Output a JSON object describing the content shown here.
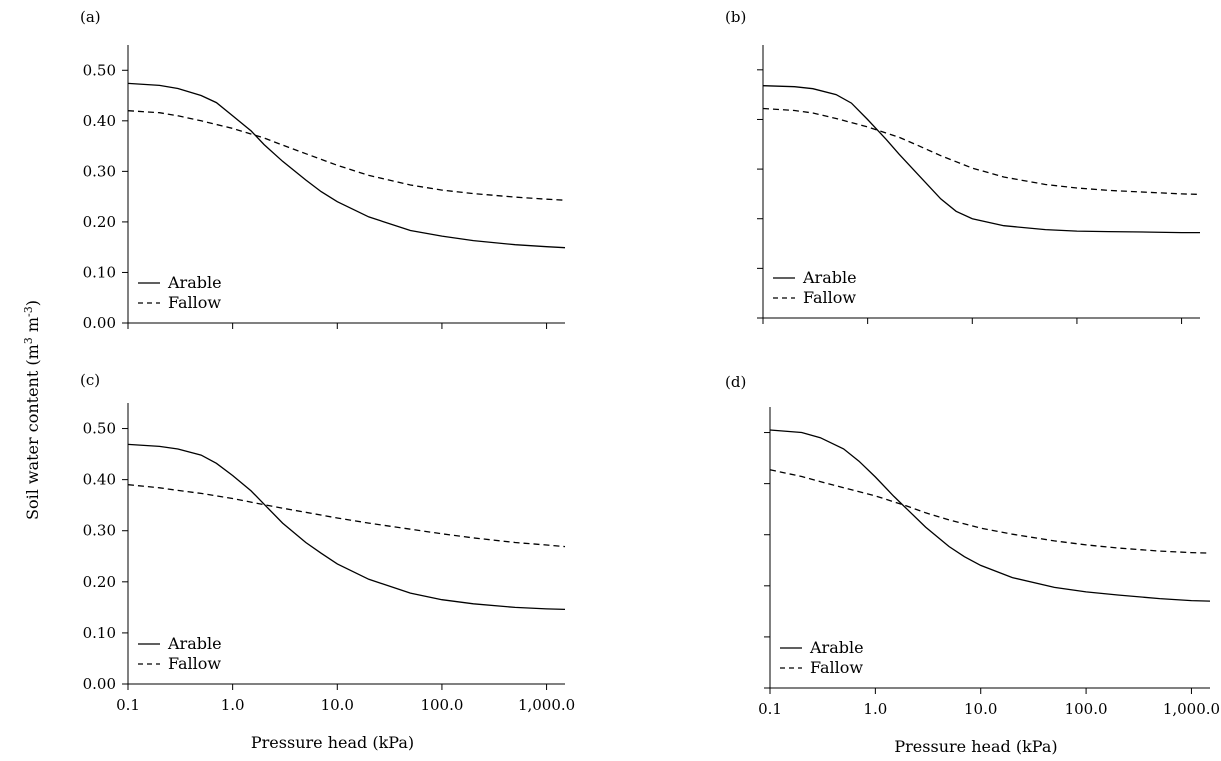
{
  "figure": {
    "ylabel_main": "Soil water content (m",
    "ylabel_sup1": "3",
    "ylabel_mid": " m",
    "ylabel_sup2": "-3",
    "ylabel_end": ")",
    "xlabel": "Pressure head (kPa)"
  },
  "chart_data": [
    {
      "panel": "(a)",
      "type": "line",
      "xscale": "log",
      "xlim": [
        0.1,
        1500
      ],
      "ylim": [
        0,
        0.55
      ],
      "yticks": [
        "0.00",
        "0.10",
        "0.20",
        "0.30",
        "0.40",
        "0.50"
      ],
      "xticks": [],
      "xlabel": "",
      "legend_position": "bottom-left",
      "series": [
        {
          "name": "Arable",
          "style": "solid",
          "x": [
            0.1,
            0.2,
            0.3,
            0.5,
            0.7,
            1.0,
            1.5,
            2.0,
            3.0,
            5.0,
            7.0,
            10.0,
            20.0,
            50.0,
            100.0,
            200.0,
            500.0,
            1000.0,
            1500.0
          ],
          "y": [
            0.474,
            0.47,
            0.464,
            0.45,
            0.436,
            0.41,
            0.38,
            0.353,
            0.32,
            0.283,
            0.26,
            0.24,
            0.21,
            0.183,
            0.172,
            0.163,
            0.155,
            0.151,
            0.149
          ]
        },
        {
          "name": "Fallow",
          "style": "dashed",
          "x": [
            0.1,
            0.2,
            0.3,
            0.5,
            1.0,
            2.0,
            3.0,
            5.0,
            10.0,
            20.0,
            50.0,
            100.0,
            200.0,
            500.0,
            1000.0,
            1500.0
          ],
          "y": [
            0.42,
            0.416,
            0.41,
            0.4,
            0.385,
            0.366,
            0.352,
            0.335,
            0.312,
            0.292,
            0.273,
            0.263,
            0.256,
            0.249,
            0.245,
            0.243
          ]
        }
      ]
    },
    {
      "panel": "(b)",
      "type": "line",
      "xscale": "log",
      "xlim": [
        0.1,
        1500
      ],
      "ylim": [
        0,
        0.55
      ],
      "yticks": [
        "",
        "",
        "",
        "",
        "",
        ""
      ],
      "xticks": [],
      "xlabel": "",
      "legend_position": "bottom-left",
      "series": [
        {
          "name": "Arable",
          "style": "solid",
          "x": [
            0.1,
            0.2,
            0.3,
            0.5,
            0.7,
            1.0,
            1.5,
            2.0,
            3.0,
            5.0,
            7.0,
            10.0,
            20.0,
            50.0,
            100.0,
            200.0,
            500.0,
            1000.0,
            1500.0
          ],
          "y": [
            0.468,
            0.466,
            0.462,
            0.45,
            0.433,
            0.4,
            0.36,
            0.33,
            0.29,
            0.24,
            0.215,
            0.2,
            0.186,
            0.178,
            0.175,
            0.174,
            0.173,
            0.172,
            0.172
          ]
        },
        {
          "name": "Fallow",
          "style": "dashed",
          "x": [
            0.1,
            0.2,
            0.3,
            0.5,
            1.0,
            2.0,
            3.0,
            5.0,
            10.0,
            20.0,
            50.0,
            100.0,
            200.0,
            500.0,
            1000.0,
            1500.0
          ],
          "y": [
            0.422,
            0.418,
            0.413,
            0.402,
            0.385,
            0.364,
            0.348,
            0.327,
            0.302,
            0.284,
            0.269,
            0.262,
            0.257,
            0.253,
            0.25,
            0.249
          ]
        }
      ]
    },
    {
      "panel": "(c)",
      "type": "line",
      "xscale": "log",
      "xlim": [
        0.1,
        1500
      ],
      "ylim": [
        0,
        0.55
      ],
      "yticks": [
        "0.00",
        "0.10",
        "0.20",
        "0.30",
        "0.40",
        "0.50"
      ],
      "xticks": [
        "0.1",
        "1.0",
        "10.0",
        "100.0",
        "1,000.0"
      ],
      "xlabel": "Pressure head (kPa)",
      "legend_position": "bottom-left",
      "series": [
        {
          "name": "Arable",
          "style": "solid",
          "x": [
            0.1,
            0.2,
            0.3,
            0.5,
            0.7,
            1.0,
            1.5,
            2.0,
            3.0,
            5.0,
            7.0,
            10.0,
            20.0,
            50.0,
            100.0,
            200.0,
            500.0,
            1000.0,
            1500.0
          ],
          "y": [
            0.469,
            0.465,
            0.46,
            0.448,
            0.432,
            0.408,
            0.378,
            0.352,
            0.315,
            0.277,
            0.256,
            0.235,
            0.205,
            0.178,
            0.165,
            0.157,
            0.15,
            0.147,
            0.146
          ]
        },
        {
          "name": "Fallow",
          "style": "dashed",
          "x": [
            0.1,
            0.2,
            0.3,
            0.5,
            1.0,
            2.0,
            3.0,
            5.0,
            10.0,
            20.0,
            50.0,
            100.0,
            200.0,
            500.0,
            1000.0,
            1500.0
          ],
          "y": [
            0.39,
            0.384,
            0.379,
            0.373,
            0.363,
            0.351,
            0.344,
            0.336,
            0.325,
            0.315,
            0.303,
            0.294,
            0.286,
            0.277,
            0.272,
            0.269
          ]
        }
      ]
    },
    {
      "panel": "(d)",
      "type": "line",
      "xscale": "log",
      "xlim": [
        0.1,
        1500
      ],
      "ylim": [
        0,
        0.55
      ],
      "yticks": [
        "",
        "",
        "",
        "",
        "",
        ""
      ],
      "xticks": [
        "0.1",
        "1.0",
        "10.0",
        "100.0",
        "1,000.0"
      ],
      "xlabel": "Pressure head (kPa)",
      "legend_position": "bottom-left",
      "series": [
        {
          "name": "Arable",
          "style": "solid",
          "x": [
            0.1,
            0.2,
            0.3,
            0.5,
            0.7,
            1.0,
            1.5,
            2.0,
            3.0,
            5.0,
            7.0,
            10.0,
            20.0,
            50.0,
            100.0,
            200.0,
            500.0,
            1000.0,
            1500.0
          ],
          "y": [
            0.505,
            0.5,
            0.49,
            0.468,
            0.444,
            0.413,
            0.375,
            0.35,
            0.315,
            0.277,
            0.257,
            0.24,
            0.216,
            0.197,
            0.188,
            0.182,
            0.175,
            0.171,
            0.17
          ]
        },
        {
          "name": "Fallow",
          "style": "dashed",
          "x": [
            0.1,
            0.2,
            0.3,
            0.5,
            1.0,
            2.0,
            3.0,
            5.0,
            10.0,
            20.0,
            50.0,
            100.0,
            200.0,
            500.0,
            1000.0,
            1500.0
          ],
          "y": [
            0.427,
            0.414,
            0.404,
            0.392,
            0.376,
            0.356,
            0.343,
            0.329,
            0.313,
            0.301,
            0.288,
            0.28,
            0.274,
            0.268,
            0.265,
            0.264
          ]
        }
      ]
    }
  ]
}
